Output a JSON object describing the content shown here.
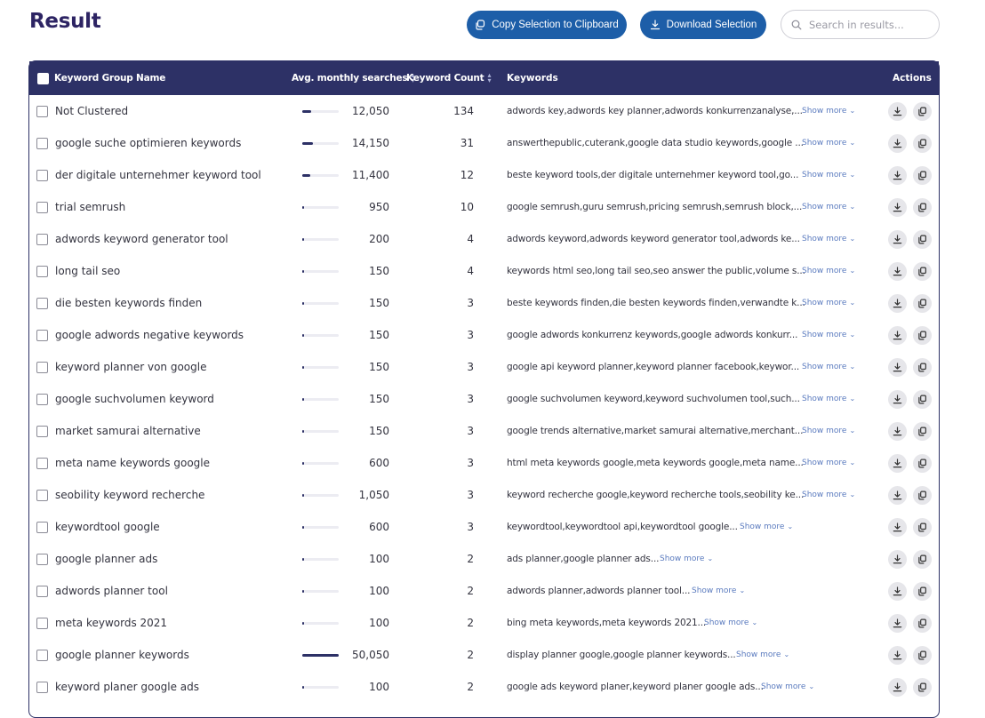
{
  "page": {
    "title": "Result"
  },
  "toolbar": {
    "copy_label": "Copy Selection to Clipboard",
    "download_label": "Download Selection",
    "search_placeholder": "Search in results..."
  },
  "table": {
    "headers": {
      "name": "Keyword Group Name",
      "avg": "Avg. monthly searches",
      "count": "Keyword Count",
      "keywords": "Keywords",
      "actions": "Actions"
    },
    "show_more_label": "Show more",
    "bar_max": 50050,
    "rows": [
      {
        "name": "Not Clustered",
        "avg": "12,050",
        "avg_value": 12050,
        "count": "134",
        "keywords": "adwords key,adwords key planner,adwords konkurrenzanalyse,..."
      },
      {
        "name": "google suche optimieren keywords",
        "avg": "14,150",
        "avg_value": 14150,
        "count": "31",
        "keywords": "answerthepublic,cuterank,google data studio keywords,google ..."
      },
      {
        "name": "der digitale unternehmer keyword tool",
        "avg": "11,400",
        "avg_value": 11400,
        "count": "12",
        "keywords": "beste keyword tools,der digitale unternehmer keyword tool,go..."
      },
      {
        "name": "trial semrush",
        "avg": "950",
        "avg_value": 950,
        "count": "10",
        "keywords": "google semrush,guru semrush,pricing semrush,semrush block,..."
      },
      {
        "name": "adwords keyword generator tool",
        "avg": "200",
        "avg_value": 200,
        "count": "4",
        "keywords": "adwords keyword,adwords keyword generator tool,adwords ke..."
      },
      {
        "name": "long tail seo",
        "avg": "150",
        "avg_value": 150,
        "count": "4",
        "keywords": "keywords html seo,long tail seo,seo answer the public,volume s..."
      },
      {
        "name": "die besten keywords finden",
        "avg": "150",
        "avg_value": 150,
        "count": "3",
        "keywords": "beste keywords finden,die besten keywords finden,verwandte k..."
      },
      {
        "name": "google adwords negative keywords",
        "avg": "150",
        "avg_value": 150,
        "count": "3",
        "keywords": "google adwords konkurrenz keywords,google adwords konkurr..."
      },
      {
        "name": "keyword planner von google",
        "avg": "150",
        "avg_value": 150,
        "count": "3",
        "keywords": "google api keyword planner,keyword planner facebook,keywor..."
      },
      {
        "name": "google suchvolumen keyword",
        "avg": "150",
        "avg_value": 150,
        "count": "3",
        "keywords": "google suchvolumen keyword,keyword suchvolumen tool,such..."
      },
      {
        "name": "market samurai alternative",
        "avg": "150",
        "avg_value": 150,
        "count": "3",
        "keywords": "google trends alternative,market samurai alternative,merchant..."
      },
      {
        "name": "meta name keywords google",
        "avg": "600",
        "avg_value": 600,
        "count": "3",
        "keywords": "html meta keywords google,meta keywords google,meta name..."
      },
      {
        "name": "seobility keyword recherche",
        "avg": "1,050",
        "avg_value": 1050,
        "count": "3",
        "keywords": "keyword recherche google,keyword recherche tools,seobility ke..."
      },
      {
        "name": "keywordtool google",
        "avg": "600",
        "avg_value": 600,
        "count": "3",
        "keywords": "keywordtool,keywordtool api,keywordtool google..."
      },
      {
        "name": "google planner ads",
        "avg": "100",
        "avg_value": 100,
        "count": "2",
        "keywords": "ads planner,google planner ads..."
      },
      {
        "name": "adwords planner tool",
        "avg": "100",
        "avg_value": 100,
        "count": "2",
        "keywords": "adwords planner,adwords planner tool..."
      },
      {
        "name": "meta keywords 2021",
        "avg": "100",
        "avg_value": 100,
        "count": "2",
        "keywords": "bing meta keywords,meta keywords 2021..."
      },
      {
        "name": "google planner keywords",
        "avg": "50,050",
        "avg_value": 50050,
        "count": "2",
        "keywords": "display planner google,google planner keywords..."
      },
      {
        "name": "keyword planer google ads",
        "avg": "100",
        "avg_value": 100,
        "count": "2",
        "keywords": "google ads keyword planer,keyword planer google ads..."
      }
    ]
  }
}
